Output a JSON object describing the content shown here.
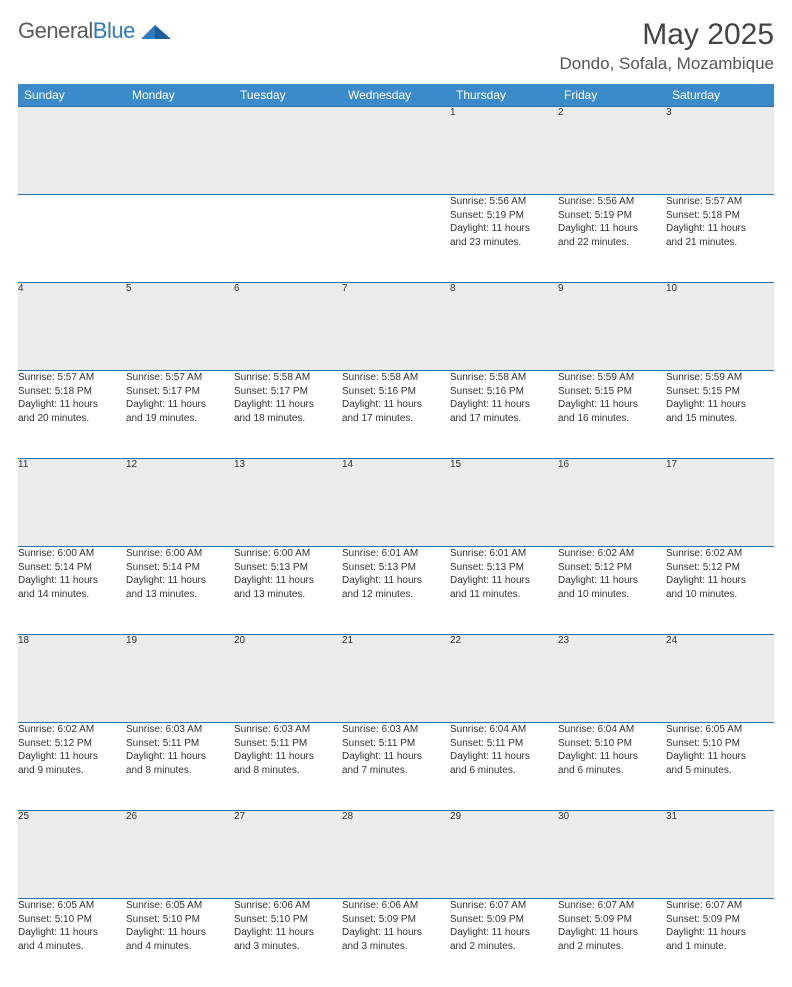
{
  "logo": {
    "text_general": "General",
    "text_blue": "Blue"
  },
  "title": "May 2025",
  "location": "Dondo, Sofala, Mozambique",
  "colors": {
    "header_bg": "#3b8bca",
    "daynum_bg": "#e9ebed",
    "rule": "#2f6fa8",
    "logo_blue": "#2f7ac0",
    "text_gray": "#555"
  },
  "weekdays": [
    "Sunday",
    "Monday",
    "Tuesday",
    "Wednesday",
    "Thursday",
    "Friday",
    "Saturday"
  ],
  "weeks": [
    [
      null,
      null,
      null,
      null,
      {
        "n": "1",
        "sr": "Sunrise: 5:56 AM",
        "ss": "Sunset: 5:19 PM",
        "dl1": "Daylight: 11 hours",
        "dl2": "and 23 minutes."
      },
      {
        "n": "2",
        "sr": "Sunrise: 5:56 AM",
        "ss": "Sunset: 5:19 PM",
        "dl1": "Daylight: 11 hours",
        "dl2": "and 22 minutes."
      },
      {
        "n": "3",
        "sr": "Sunrise: 5:57 AM",
        "ss": "Sunset: 5:18 PM",
        "dl1": "Daylight: 11 hours",
        "dl2": "and 21 minutes."
      }
    ],
    [
      {
        "n": "4",
        "sr": "Sunrise: 5:57 AM",
        "ss": "Sunset: 5:18 PM",
        "dl1": "Daylight: 11 hours",
        "dl2": "and 20 minutes."
      },
      {
        "n": "5",
        "sr": "Sunrise: 5:57 AM",
        "ss": "Sunset: 5:17 PM",
        "dl1": "Daylight: 11 hours",
        "dl2": "and 19 minutes."
      },
      {
        "n": "6",
        "sr": "Sunrise: 5:58 AM",
        "ss": "Sunset: 5:17 PM",
        "dl1": "Daylight: 11 hours",
        "dl2": "and 18 minutes."
      },
      {
        "n": "7",
        "sr": "Sunrise: 5:58 AM",
        "ss": "Sunset: 5:16 PM",
        "dl1": "Daylight: 11 hours",
        "dl2": "and 17 minutes."
      },
      {
        "n": "8",
        "sr": "Sunrise: 5:58 AM",
        "ss": "Sunset: 5:16 PM",
        "dl1": "Daylight: 11 hours",
        "dl2": "and 17 minutes."
      },
      {
        "n": "9",
        "sr": "Sunrise: 5:59 AM",
        "ss": "Sunset: 5:15 PM",
        "dl1": "Daylight: 11 hours",
        "dl2": "and 16 minutes."
      },
      {
        "n": "10",
        "sr": "Sunrise: 5:59 AM",
        "ss": "Sunset: 5:15 PM",
        "dl1": "Daylight: 11 hours",
        "dl2": "and 15 minutes."
      }
    ],
    [
      {
        "n": "11",
        "sr": "Sunrise: 6:00 AM",
        "ss": "Sunset: 5:14 PM",
        "dl1": "Daylight: 11 hours",
        "dl2": "and 14 minutes."
      },
      {
        "n": "12",
        "sr": "Sunrise: 6:00 AM",
        "ss": "Sunset: 5:14 PM",
        "dl1": "Daylight: 11 hours",
        "dl2": "and 13 minutes."
      },
      {
        "n": "13",
        "sr": "Sunrise: 6:00 AM",
        "ss": "Sunset: 5:13 PM",
        "dl1": "Daylight: 11 hours",
        "dl2": "and 13 minutes."
      },
      {
        "n": "14",
        "sr": "Sunrise: 6:01 AM",
        "ss": "Sunset: 5:13 PM",
        "dl1": "Daylight: 11 hours",
        "dl2": "and 12 minutes."
      },
      {
        "n": "15",
        "sr": "Sunrise: 6:01 AM",
        "ss": "Sunset: 5:13 PM",
        "dl1": "Daylight: 11 hours",
        "dl2": "and 11 minutes."
      },
      {
        "n": "16",
        "sr": "Sunrise: 6:02 AM",
        "ss": "Sunset: 5:12 PM",
        "dl1": "Daylight: 11 hours",
        "dl2": "and 10 minutes."
      },
      {
        "n": "17",
        "sr": "Sunrise: 6:02 AM",
        "ss": "Sunset: 5:12 PM",
        "dl1": "Daylight: 11 hours",
        "dl2": "and 10 minutes."
      }
    ],
    [
      {
        "n": "18",
        "sr": "Sunrise: 6:02 AM",
        "ss": "Sunset: 5:12 PM",
        "dl1": "Daylight: 11 hours",
        "dl2": "and 9 minutes."
      },
      {
        "n": "19",
        "sr": "Sunrise: 6:03 AM",
        "ss": "Sunset: 5:11 PM",
        "dl1": "Daylight: 11 hours",
        "dl2": "and 8 minutes."
      },
      {
        "n": "20",
        "sr": "Sunrise: 6:03 AM",
        "ss": "Sunset: 5:11 PM",
        "dl1": "Daylight: 11 hours",
        "dl2": "and 8 minutes."
      },
      {
        "n": "21",
        "sr": "Sunrise: 6:03 AM",
        "ss": "Sunset: 5:11 PM",
        "dl1": "Daylight: 11 hours",
        "dl2": "and 7 minutes."
      },
      {
        "n": "22",
        "sr": "Sunrise: 6:04 AM",
        "ss": "Sunset: 5:11 PM",
        "dl1": "Daylight: 11 hours",
        "dl2": "and 6 minutes."
      },
      {
        "n": "23",
        "sr": "Sunrise: 6:04 AM",
        "ss": "Sunset: 5:10 PM",
        "dl1": "Daylight: 11 hours",
        "dl2": "and 6 minutes."
      },
      {
        "n": "24",
        "sr": "Sunrise: 6:05 AM",
        "ss": "Sunset: 5:10 PM",
        "dl1": "Daylight: 11 hours",
        "dl2": "and 5 minutes."
      }
    ],
    [
      {
        "n": "25",
        "sr": "Sunrise: 6:05 AM",
        "ss": "Sunset: 5:10 PM",
        "dl1": "Daylight: 11 hours",
        "dl2": "and 4 minutes."
      },
      {
        "n": "26",
        "sr": "Sunrise: 6:05 AM",
        "ss": "Sunset: 5:10 PM",
        "dl1": "Daylight: 11 hours",
        "dl2": "and 4 minutes."
      },
      {
        "n": "27",
        "sr": "Sunrise: 6:06 AM",
        "ss": "Sunset: 5:10 PM",
        "dl1": "Daylight: 11 hours",
        "dl2": "and 3 minutes."
      },
      {
        "n": "28",
        "sr": "Sunrise: 6:06 AM",
        "ss": "Sunset: 5:09 PM",
        "dl1": "Daylight: 11 hours",
        "dl2": "and 3 minutes."
      },
      {
        "n": "29",
        "sr": "Sunrise: 6:07 AM",
        "ss": "Sunset: 5:09 PM",
        "dl1": "Daylight: 11 hours",
        "dl2": "and 2 minutes."
      },
      {
        "n": "30",
        "sr": "Sunrise: 6:07 AM",
        "ss": "Sunset: 5:09 PM",
        "dl1": "Daylight: 11 hours",
        "dl2": "and 2 minutes."
      },
      {
        "n": "31",
        "sr": "Sunrise: 6:07 AM",
        "ss": "Sunset: 5:09 PM",
        "dl1": "Daylight: 11 hours",
        "dl2": "and 1 minute."
      }
    ]
  ]
}
